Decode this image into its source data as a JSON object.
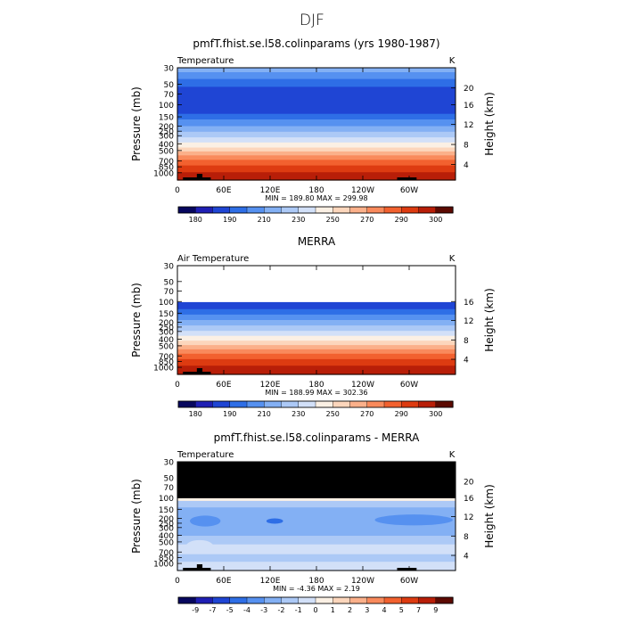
{
  "page_title": "DJF",
  "chart_data": [
    {
      "type": "heatmap",
      "title": "pmfT.fhist.se.l58.colinparams (yrs 1980-1987)",
      "subtitle_left": "Temperature",
      "units": "K",
      "ylabel": "Pressure (mb)",
      "ylabel_right": "Height (km)",
      "x_ticks": [
        "0",
        "60E",
        "120E",
        "180",
        "120W",
        "60W"
      ],
      "y_ticks": [
        "30",
        "50",
        "70",
        "100",
        "150",
        "200",
        "250",
        "300",
        "400",
        "500",
        "700",
        "850",
        "1000"
      ],
      "y_ticks_right": [
        "20",
        "16",
        "12",
        "8",
        "4"
      ],
      "stats": "MIN = 189.80   MAX = 299.98",
      "colorbar_labels": [
        "180",
        "190",
        "210",
        "230",
        "250",
        "270",
        "290",
        "300"
      ],
      "colors": [
        "#07075e",
        "#1f1fb4",
        "#1f45d4",
        "#2e6ee6",
        "#5691f0",
        "#83b0f4",
        "#acc9f6",
        "#d2e0f8",
        "#fbf0e4",
        "#fcd6bc",
        "#fbb08a",
        "#f98a5c",
        "#f2612f",
        "#dd3b11",
        "#b81e08",
        "#5c0a02"
      ],
      "missing_top": false
    },
    {
      "type": "heatmap",
      "title": "MERRA",
      "subtitle_left": "Air Temperature",
      "units": "K",
      "ylabel": "Pressure (mb)",
      "ylabel_right": "Height (km)",
      "x_ticks": [
        "0",
        "60E",
        "120E",
        "180",
        "120W",
        "60W"
      ],
      "y_ticks": [
        "30",
        "50",
        "70",
        "100",
        "150",
        "200",
        "250",
        "300",
        "400",
        "500",
        "700",
        "850",
        "1000"
      ],
      "y_ticks_right": [
        "16",
        "12",
        "8",
        "4"
      ],
      "stats": "MIN = 188.99   MAX = 302.36",
      "colorbar_labels": [
        "180",
        "190",
        "210",
        "230",
        "250",
        "270",
        "290",
        "300"
      ],
      "colors": [
        "#07075e",
        "#1f1fb4",
        "#1f45d4",
        "#2e6ee6",
        "#5691f0",
        "#83b0f4",
        "#acc9f6",
        "#d2e0f8",
        "#fbf0e4",
        "#fcd6bc",
        "#fbb08a",
        "#f98a5c",
        "#f2612f",
        "#dd3b11",
        "#b81e08",
        "#5c0a02"
      ],
      "missing_top": true
    },
    {
      "type": "heatmap",
      "title": "pmfT.fhist.se.l58.colinparams - MERRA",
      "subtitle_left": "Temperature",
      "units": "K",
      "ylabel": "Pressure (mb)",
      "ylabel_right": "Height (km)",
      "x_ticks": [
        "0",
        "60E",
        "120E",
        "180",
        "120W",
        "60W"
      ],
      "y_ticks": [
        "30",
        "50",
        "70",
        "100",
        "150",
        "200",
        "250",
        "300",
        "400",
        "500",
        "700",
        "850",
        "1000"
      ],
      "y_ticks_right": [
        "20",
        "16",
        "12",
        "8",
        "4"
      ],
      "stats": "MIN =   -4.36   MAX =    2.19",
      "colorbar_labels": [
        "-9",
        "-7",
        "-5",
        "-4",
        "-3",
        "-2",
        "-1",
        "0",
        "1",
        "2",
        "3",
        "4",
        "5",
        "7",
        "9"
      ],
      "colors": [
        "#07075e",
        "#1f1fb4",
        "#1f45d4",
        "#2e6ee6",
        "#5691f0",
        "#83b0f4",
        "#acc9f6",
        "#d2e0f8",
        "#fbf0e4",
        "#fcd6bc",
        "#fbb08a",
        "#f98a5c",
        "#f2612f",
        "#dd3b11",
        "#b81e08",
        "#5c0a02"
      ],
      "missing_top": true
    }
  ]
}
